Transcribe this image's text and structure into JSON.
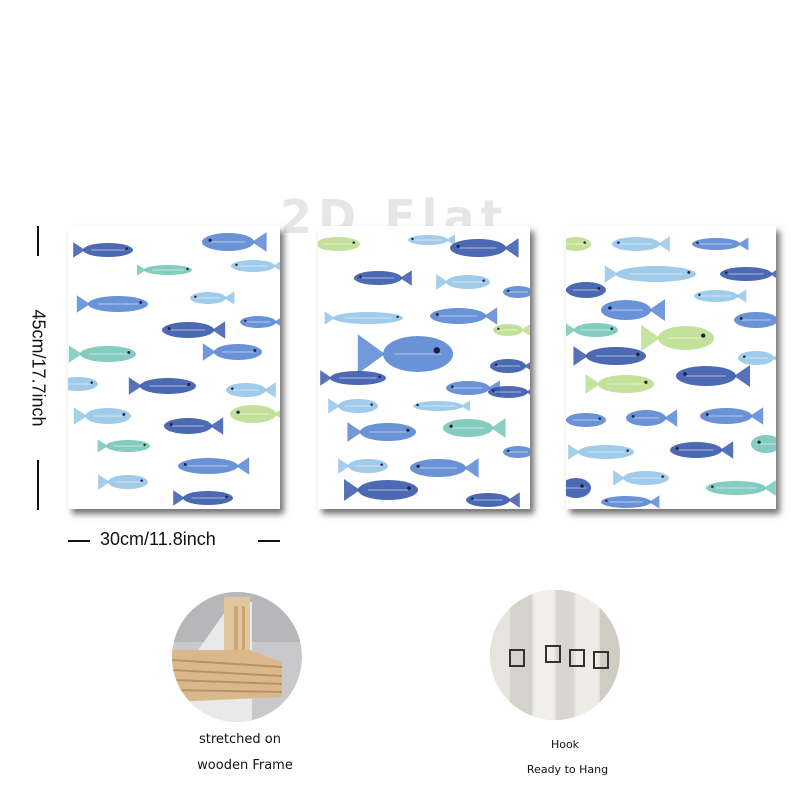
{
  "watermark": "2D Flat",
  "dimensions": {
    "height_label": "45cm/17.7inch",
    "width_label": "30cm/11.8inch"
  },
  "panels": [
    {
      "name": "left-canvas",
      "artwork": "watercolor fish pattern"
    },
    {
      "name": "center-canvas",
      "artwork": "watercolor fish pattern"
    },
    {
      "name": "right-canvas",
      "artwork": "watercolor fish pattern"
    }
  ],
  "features": {
    "frame": {
      "line1": "stretched on",
      "line2": "wooden Frame"
    },
    "hook": {
      "line1": "Hook",
      "line2": "Ready to Hang"
    }
  },
  "colors": {
    "fish_dark_blue": "#2d4fa6",
    "fish_mid_blue": "#4f7fd0",
    "fish_light_blue": "#8fc2e8",
    "fish_aqua": "#6fc3b4",
    "fish_lime": "#b9dc8a",
    "wood": "#d9b98c"
  }
}
